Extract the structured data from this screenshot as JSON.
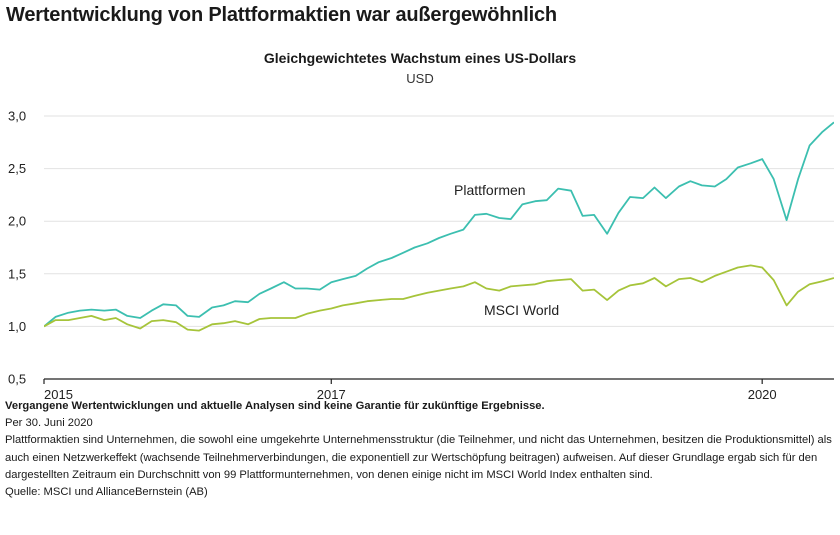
{
  "headline": "Wertentwicklung von Plattformaktien war außergewöhnlich",
  "chart_data": {
    "type": "line",
    "title": "Gleichgewichtetes Wachstum eines US-Dollars",
    "ylabel": "USD",
    "xlabel": "",
    "xlim": [
      2015.0,
      2020.5
    ],
    "ylim": [
      0.5,
      3.0
    ],
    "yticks": [
      {
        "value": 0.5,
        "label": "0,5"
      },
      {
        "value": 1.0,
        "label": "1,0"
      },
      {
        "value": 1.5,
        "label": "1,5"
      },
      {
        "value": 2.0,
        "label": "2,0"
      },
      {
        "value": 2.5,
        "label": "2,5"
      },
      {
        "value": 3.0,
        "label": "3,0"
      }
    ],
    "xticks": [
      {
        "value": 2015.0,
        "label": "2015"
      },
      {
        "value": 2017.0,
        "label": "2017"
      },
      {
        "value": 2020.0,
        "label": "2020"
      }
    ],
    "grid": true,
    "series": [
      {
        "name": "Plattformen",
        "color": "#3cbfb0",
        "x": [
          2015.0,
          2015.08,
          2015.17,
          2015.25,
          2015.33,
          2015.42,
          2015.5,
          2015.58,
          2015.67,
          2015.75,
          2015.83,
          2015.92,
          2016.0,
          2016.08,
          2016.17,
          2016.25,
          2016.33,
          2016.42,
          2016.5,
          2016.58,
          2016.67,
          2016.75,
          2016.83,
          2016.92,
          2017.0,
          2017.08,
          2017.17,
          2017.25,
          2017.33,
          2017.42,
          2017.5,
          2017.58,
          2017.67,
          2017.75,
          2017.83,
          2017.92,
          2018.0,
          2018.08,
          2018.17,
          2018.25,
          2018.33,
          2018.42,
          2018.5,
          2018.58,
          2018.67,
          2018.75,
          2018.83,
          2018.92,
          2019.0,
          2019.08,
          2019.17,
          2019.25,
          2019.33,
          2019.42,
          2019.5,
          2019.58,
          2019.67,
          2019.75,
          2019.83,
          2019.92,
          2020.0,
          2020.08,
          2020.17,
          2020.25,
          2020.33,
          2020.42,
          2020.5
        ],
        "values": [
          1.0,
          1.09,
          1.13,
          1.15,
          1.16,
          1.15,
          1.16,
          1.1,
          1.08,
          1.15,
          1.21,
          1.2,
          1.1,
          1.09,
          1.18,
          1.2,
          1.24,
          1.23,
          1.31,
          1.36,
          1.42,
          1.36,
          1.36,
          1.35,
          1.42,
          1.45,
          1.48,
          1.55,
          1.61,
          1.65,
          1.7,
          1.75,
          1.79,
          1.84,
          1.88,
          1.92,
          2.06,
          2.07,
          2.03,
          2.02,
          2.16,
          2.19,
          2.2,
          2.31,
          2.29,
          2.05,
          2.06,
          1.88,
          2.08,
          2.23,
          2.22,
          2.32,
          2.22,
          2.33,
          2.38,
          2.34,
          2.33,
          2.4,
          2.51,
          2.55,
          2.59,
          2.4,
          2.01,
          2.4,
          2.72,
          2.85,
          2.94
        ]
      },
      {
        "name": "MSCI World",
        "color": "#a6c43a",
        "x": [
          2015.0,
          2015.08,
          2015.17,
          2015.25,
          2015.33,
          2015.42,
          2015.5,
          2015.58,
          2015.67,
          2015.75,
          2015.83,
          2015.92,
          2016.0,
          2016.08,
          2016.17,
          2016.25,
          2016.33,
          2016.42,
          2016.5,
          2016.58,
          2016.67,
          2016.75,
          2016.83,
          2016.92,
          2017.0,
          2017.08,
          2017.17,
          2017.25,
          2017.33,
          2017.42,
          2017.5,
          2017.58,
          2017.67,
          2017.75,
          2017.83,
          2017.92,
          2018.0,
          2018.08,
          2018.17,
          2018.25,
          2018.33,
          2018.42,
          2018.5,
          2018.58,
          2018.67,
          2018.75,
          2018.83,
          2018.92,
          2019.0,
          2019.08,
          2019.17,
          2019.25,
          2019.33,
          2019.42,
          2019.5,
          2019.58,
          2019.67,
          2019.75,
          2019.83,
          2019.92,
          2020.0,
          2020.08,
          2020.17,
          2020.25,
          2020.33,
          2020.42,
          2020.5
        ],
        "values": [
          1.0,
          1.06,
          1.06,
          1.08,
          1.1,
          1.06,
          1.08,
          1.02,
          0.98,
          1.05,
          1.06,
          1.04,
          0.97,
          0.96,
          1.02,
          1.03,
          1.05,
          1.02,
          1.07,
          1.08,
          1.08,
          1.08,
          1.12,
          1.15,
          1.17,
          1.2,
          1.22,
          1.24,
          1.25,
          1.26,
          1.26,
          1.29,
          1.32,
          1.34,
          1.36,
          1.38,
          1.42,
          1.36,
          1.34,
          1.38,
          1.39,
          1.4,
          1.43,
          1.44,
          1.45,
          1.34,
          1.35,
          1.25,
          1.34,
          1.39,
          1.41,
          1.46,
          1.38,
          1.45,
          1.46,
          1.42,
          1.48,
          1.52,
          1.56,
          1.58,
          1.56,
          1.44,
          1.2,
          1.33,
          1.4,
          1.43,
          1.46
        ]
      }
    ]
  },
  "footer": {
    "disclaimer": "Vergangene Wertentwicklungen und aktuelle Analysen sind keine Garantie für zukünftige Ergebnisse.",
    "date": "Per 30. Juni 2020",
    "note": "Plattformaktien sind Unternehmen, die sowohl eine umgekehrte Unternehmensstruktur (die Teilnehmer, und nicht das Unternehmen, besitzen die Produktionsmittel) als auch einen Netzwerkeffekt (wachsende Teilnehmerverbindungen, die exponentiell zur Wertschöpfung beitragen) aufweisen. Auf dieser Grundlage ergab sich für den dargestellten Zeitraum ein Durchschnitt von 99 Plattformunternehmen, von denen einige nicht im MSCI World Index enthalten sind.",
    "source": "Quelle: MSCI und AllianceBernstein (AB)"
  }
}
